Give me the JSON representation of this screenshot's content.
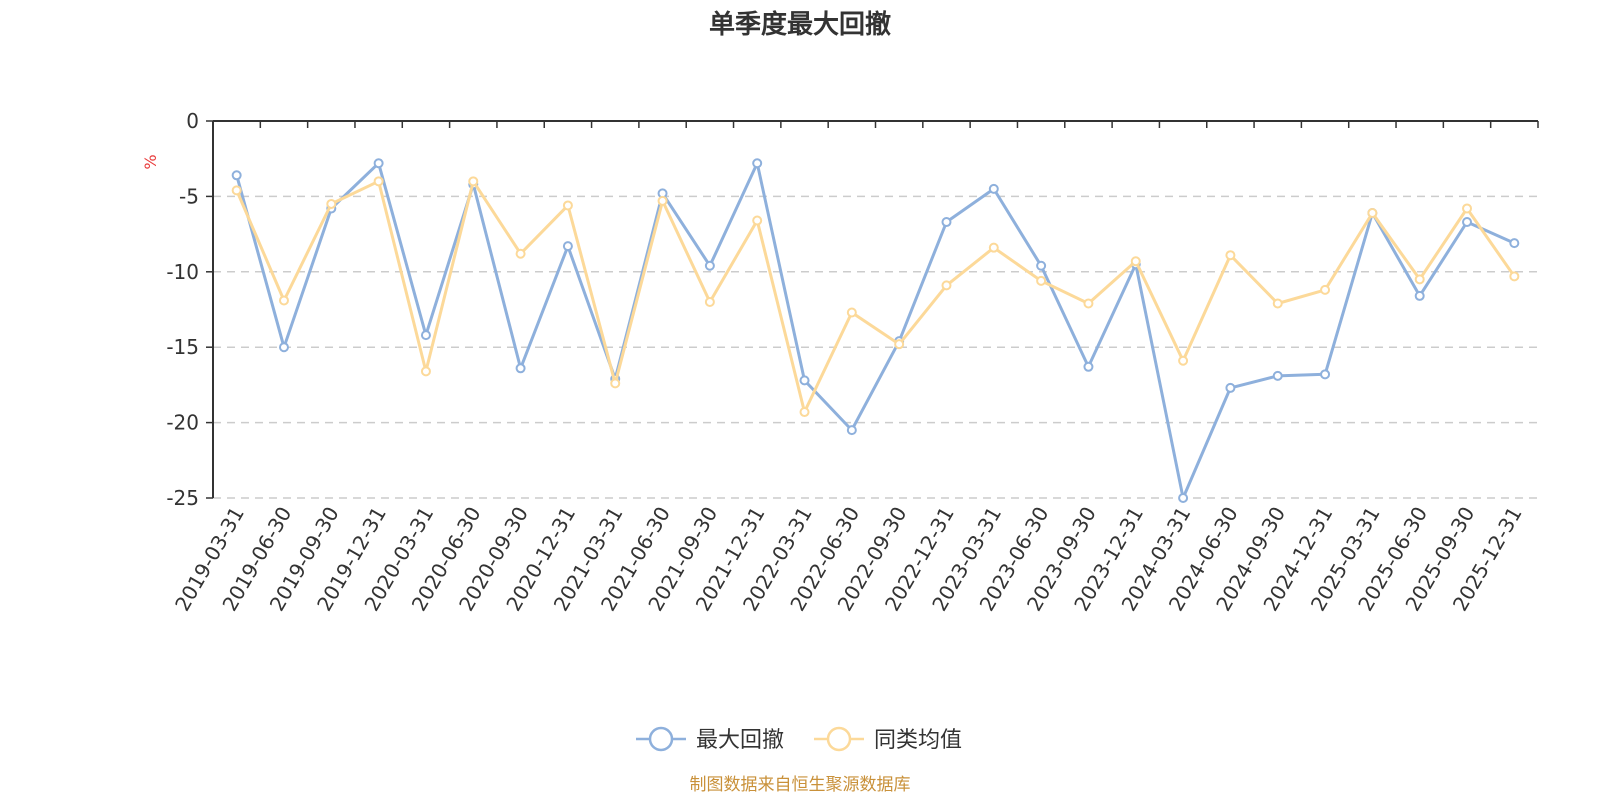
{
  "chart_data": {
    "type": "line",
    "title": "单季度最大回撤",
    "ylabel": "%",
    "ylim": [
      -25,
      0
    ],
    "yticks": [
      "0",
      "-5",
      "-10",
      "-15",
      "-20",
      "-25"
    ],
    "ytick_values": [
      0,
      -5,
      -10,
      -15,
      -20,
      -25
    ],
    "grid": true,
    "legend_position": "bottom-center",
    "categories": [
      "2019-03-31",
      "2019-06-30",
      "2019-09-30",
      "2019-12-31",
      "2020-03-31",
      "2020-06-30",
      "2020-09-30",
      "2020-12-31",
      "2021-03-31",
      "2021-06-30",
      "2021-09-30",
      "2021-12-31",
      "2022-03-31",
      "2022-06-30",
      "2022-09-30",
      "2022-12-31",
      "2023-03-31",
      "2023-06-30",
      "2023-09-30",
      "2023-12-31",
      "2024-03-31",
      "2024-06-30",
      "2024-09-30",
      "2024-12-31",
      "2025-03-31",
      "2025-06-30",
      "2025-09-30",
      "2025-12-31"
    ],
    "series": [
      {
        "name": "最大回撤",
        "color": "#8eb0dc",
        "values": [
          -3.6,
          -15.0,
          -5.8,
          -2.8,
          -14.2,
          -4.2,
          -16.4,
          -8.3,
          -17.1,
          -4.8,
          -9.6,
          -2.8,
          -17.2,
          -20.5,
          -14.6,
          -6.7,
          -4.5,
          -9.6,
          -16.3,
          -9.5,
          -25.0,
          -17.7,
          -16.9,
          -16.8,
          -6.1,
          -11.6,
          -6.7,
          -8.1
        ]
      },
      {
        "name": "同类均值",
        "color": "#fcd999",
        "values": [
          -4.6,
          -11.9,
          -5.5,
          -4.0,
          -16.6,
          -4.0,
          -8.8,
          -5.6,
          -17.4,
          -5.3,
          -12.0,
          -6.6,
          -19.3,
          -12.7,
          -14.8,
          -10.9,
          -8.4,
          -10.6,
          -12.1,
          -9.3,
          -15.9,
          -8.9,
          -12.1,
          -11.2,
          -6.1,
          -10.5,
          -5.8,
          -10.3
        ]
      }
    ],
    "source_note": "制图数据来自恒生聚源数据库"
  },
  "colors": {
    "unit_color": "#e83b3b",
    "source_color": "#c9913a",
    "axis_color": "#333333",
    "grid_color": "#cccccc"
  }
}
